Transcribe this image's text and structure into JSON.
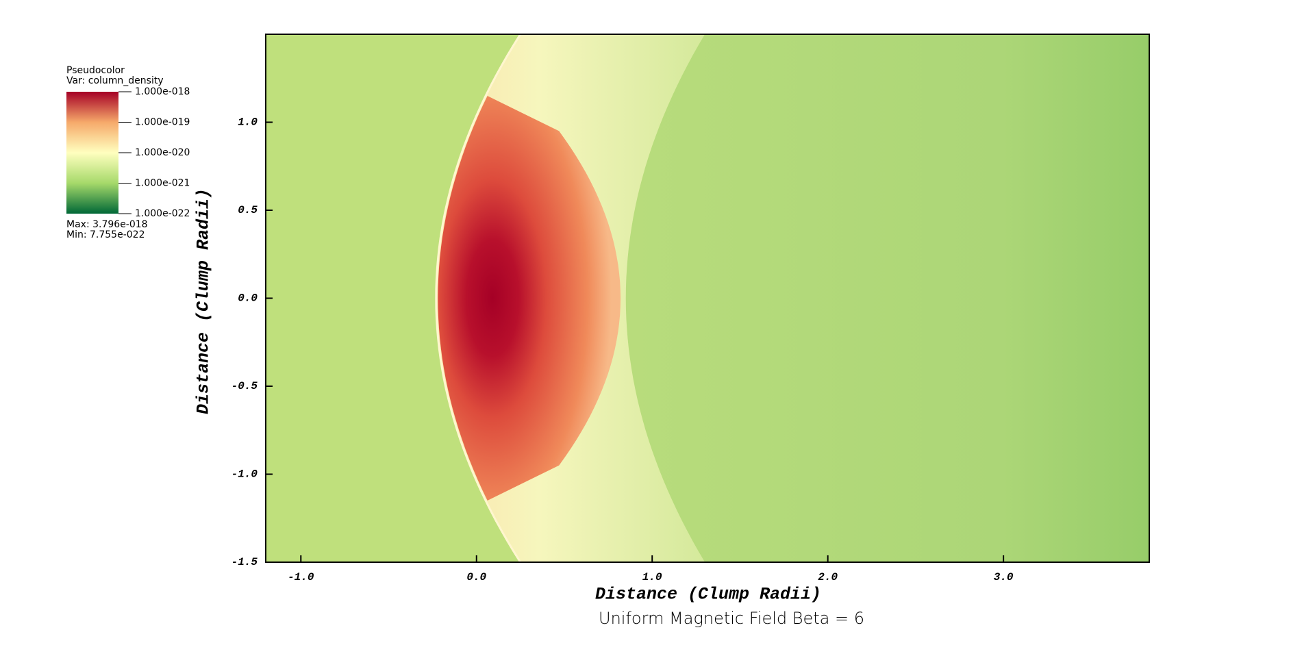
{
  "chart_data": {
    "type": "pseudocolor",
    "title": "Uniform Magnetic Field Beta = 6",
    "x_label": "Distance (Clump Radii)",
    "y_label": "Distance (Clump Radii)",
    "xlim": [
      -1.2,
      3.83
    ],
    "ylim": [
      -1.5,
      1.5
    ],
    "xticks": [
      {
        "value": -1,
        "label": "-1.0"
      },
      {
        "value": 0,
        "label": "0.0"
      },
      {
        "value": 1,
        "label": "1.0"
      },
      {
        "value": 2,
        "label": "2.0"
      },
      {
        "value": 3,
        "label": "3.0"
      }
    ],
    "yticks": [
      {
        "value": -1.5,
        "label": "-1.5"
      },
      {
        "value": -1,
        "label": "-1.0"
      },
      {
        "value": -0.5,
        "label": "-0.5"
      },
      {
        "value": 0,
        "label": "0.0"
      },
      {
        "value": 0.5,
        "label": "0.5"
      },
      {
        "value": 1,
        "label": "1.0"
      }
    ],
    "colorbar": {
      "title": "Pseudocolor",
      "variable": "Var: column_density",
      "log": true,
      "range": [
        1e-22,
        1e-18
      ],
      "ticks": [
        {
          "value": 1e-18,
          "label": "1.000e-018"
        },
        {
          "value": 1e-19,
          "label": "1.000e-019"
        },
        {
          "value": 1e-20,
          "label": "1.000e-020"
        },
        {
          "value": 1e-21,
          "label": "1.000e-021"
        },
        {
          "value": 1e-22,
          "label": "1.000e-022"
        }
      ],
      "max_label": "Max:  3.796e-018",
      "min_label": "Min:  7.755e-022",
      "colors": [
        "#006837",
        "#a6d96a",
        "#ffffbf",
        "#f6a96a",
        "#a50026"
      ]
    }
  }
}
